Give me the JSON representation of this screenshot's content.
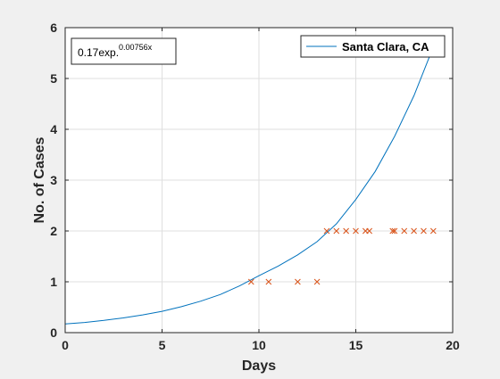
{
  "chart_data": {
    "type": "line",
    "xlabel": "Days",
    "ylabel": "No. of Cases",
    "xlim": [
      0,
      20
    ],
    "ylim": [
      0,
      6
    ],
    "x_ticks": [
      0,
      5,
      10,
      15,
      20
    ],
    "y_ticks": [
      0,
      1,
      2,
      3,
      4,
      5,
      6
    ],
    "grid": true,
    "legend_position": "top-right",
    "annotation": {
      "base": "0.17exp.",
      "exponent": "0.00756x"
    },
    "series": [
      {
        "name": "Santa Clara, CA",
        "kind": "line",
        "color": "#0072bd",
        "x": [
          0,
          1,
          2,
          3,
          4,
          5,
          6,
          7,
          8,
          9,
          10,
          11,
          12,
          13,
          14,
          15,
          16,
          17,
          18,
          19
        ],
        "y": [
          0.17,
          0.2,
          0.24,
          0.29,
          0.35,
          0.42,
          0.51,
          0.62,
          0.75,
          0.92,
          1.12,
          1.31,
          1.53,
          1.79,
          2.14,
          2.62,
          3.17,
          3.86,
          4.66,
          5.62
        ]
      },
      {
        "kind": "markers",
        "marker": "x",
        "color": "#d95319",
        "x": [
          9.6,
          10.5,
          12.0,
          13.0,
          13.5,
          14.0,
          14.5,
          15.0,
          15.5,
          15.7,
          16.9,
          17.0,
          17.5,
          18.0,
          18.5,
          19.0
        ],
        "y": [
          1,
          1,
          1,
          1,
          2,
          2,
          2,
          2,
          2,
          2,
          2,
          2,
          2,
          2,
          2,
          2
        ]
      }
    ]
  }
}
